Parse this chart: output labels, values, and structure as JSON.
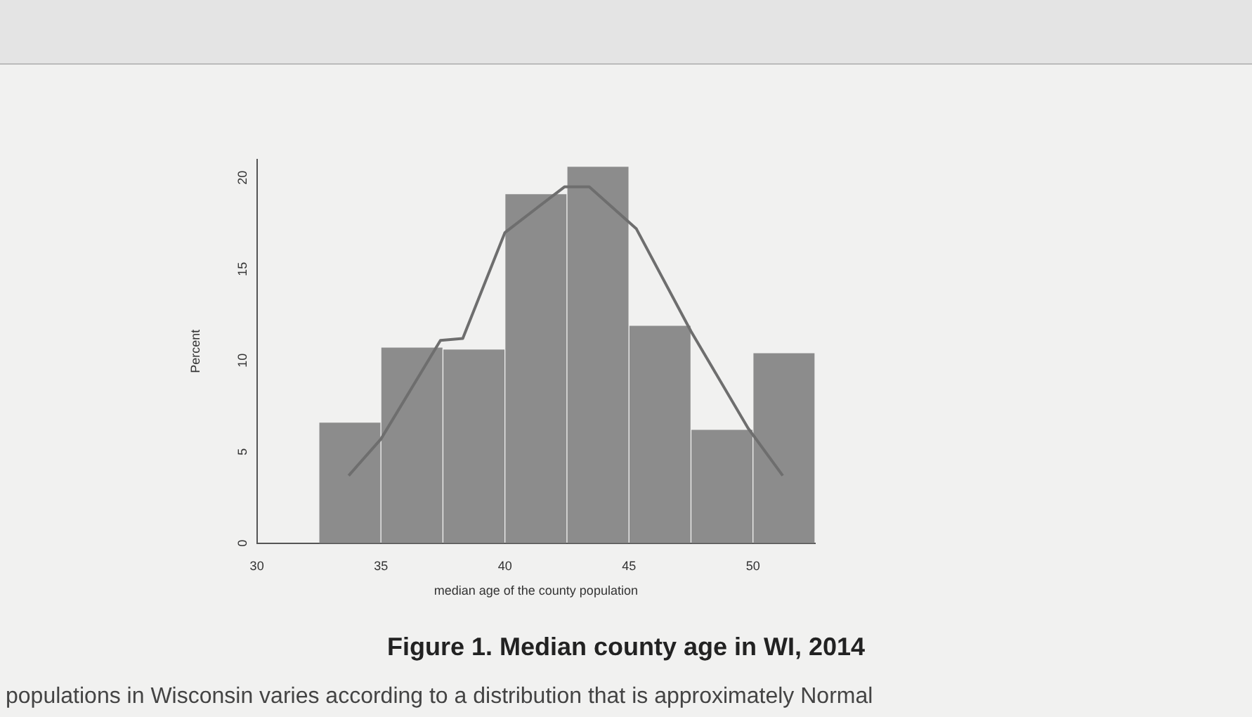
{
  "chart_data": {
    "type": "histogram",
    "title": "Figure 1. Median county age in WI, 2014",
    "xlabel": "median age of the county population",
    "ylabel": "Percent",
    "bins": [
      32.5,
      35,
      37.5,
      40,
      42.5,
      45,
      47.5,
      50,
      52.5
    ],
    "values": [
      6.6,
      10.7,
      10.6,
      19.1,
      20.6,
      11.9,
      6.2,
      10.4
    ],
    "color": "#8c8c8c",
    "series": [
      {
        "type": "line",
        "color": "#6e6e6e",
        "x": [
          33.7,
          35,
          37.4,
          38.3,
          40,
          42.4,
          43.4,
          45.3,
          47.5,
          49.8,
          51.2
        ],
        "values": [
          3.7,
          5.7,
          11.1,
          11.2,
          17,
          19.5,
          19.5,
          17.2,
          11.6,
          6.3,
          3.7
        ]
      }
    ],
    "xlim": [
      30,
      52.5
    ],
    "xticks": [
      30,
      35,
      40,
      45,
      50
    ],
    "ylim": [
      0,
      21
    ],
    "yticks": [
      0,
      5,
      10,
      15,
      20
    ],
    "grid": false,
    "legend": false,
    "annotations": [
      "populations in Wisconsin varies according to a distribution that is approximately Normal"
    ]
  }
}
